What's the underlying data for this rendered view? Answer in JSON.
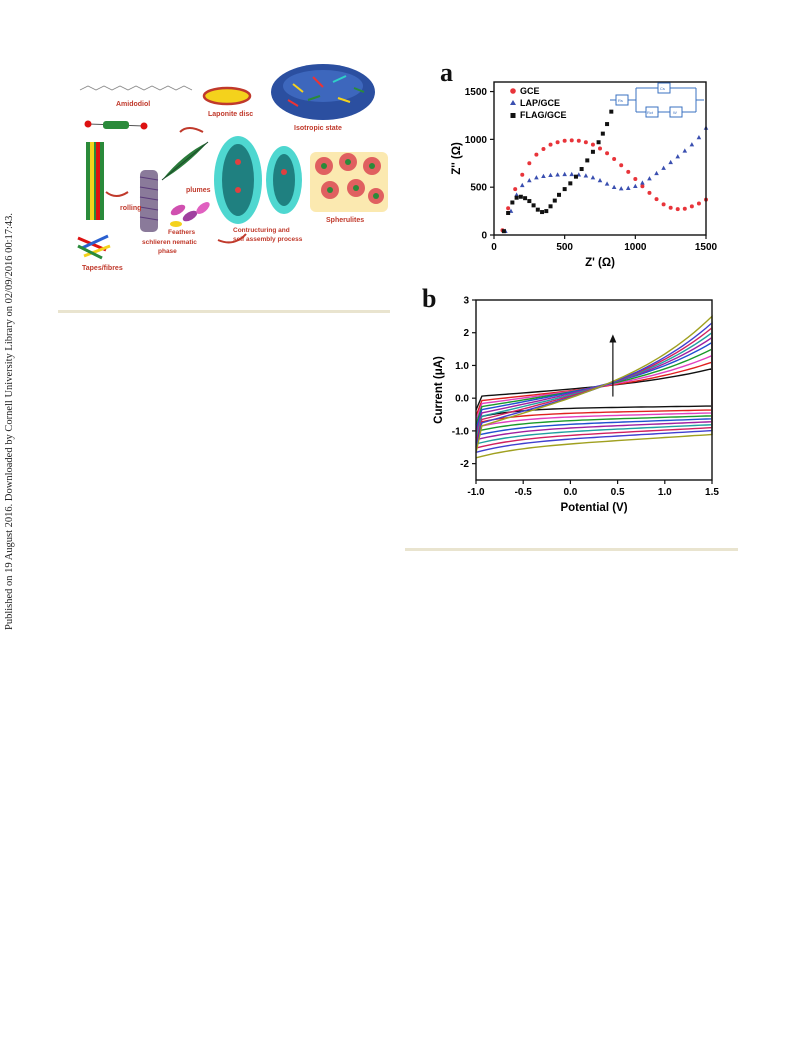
{
  "side_note": "Published on 19 August 2016. Downloaded by Cornell University Library on 02/09/2016 00:17:43.",
  "scheme": {
    "labels": {
      "amidodiol": "Amidodiol",
      "laponite": "Laponite disc",
      "isotropic": "Isotropic state",
      "plumes": "plumes",
      "rolling": "rolling",
      "feathers": "Feathers",
      "schlieren": "schlieren nematic",
      "phase": "phase",
      "constructing": "Contructuring and",
      "self_assembly": "self assembly process",
      "spherulites": "Spherulites",
      "tapes": "Tapes/fibres"
    },
    "colors": {
      "label_red": "#c0392b",
      "disc_yellow": "#f4d21c",
      "sphere_blue": "#2b4fa0",
      "cyan": "#2fd0c8"
    }
  },
  "panel_a": {
    "letter": "a",
    "legend": [
      "GCE",
      "LAP/GCE",
      "FLAG/GCE"
    ],
    "circuit_labels": {
      "rs": "Rs",
      "cs": "Cs",
      "rct": "Rct",
      "w": "W"
    }
  },
  "panel_b": {
    "letter": "b"
  },
  "chart_data": [
    {
      "type": "scatter",
      "xlabel": "Z' (Ω)",
      "ylabel": "Z'' (Ω)",
      "xlim": [
        0,
        1500
      ],
      "ylim": [
        0,
        1600
      ],
      "xticks": [
        0,
        500,
        1000,
        1500
      ],
      "yticks": [
        0,
        500,
        1000,
        1500
      ],
      "legend_position": "top-left",
      "series": [
        {
          "name": "GCE",
          "color": "#e8343a",
          "marker": "circle",
          "x": [
            60,
            100,
            150,
            200,
            250,
            300,
            350,
            400,
            450,
            500,
            550,
            600,
            650,
            700,
            750,
            800,
            850,
            900,
            950,
            1000,
            1050,
            1100,
            1150,
            1200,
            1250,
            1300,
            1350,
            1400,
            1450,
            1500
          ],
          "y": [
            50,
            280,
            480,
            630,
            750,
            840,
            900,
            945,
            970,
            985,
            990,
            985,
            970,
            945,
            905,
            855,
            795,
            730,
            660,
            585,
            510,
            440,
            375,
            320,
            285,
            270,
            275,
            300,
            330,
            370
          ]
        },
        {
          "name": "LAP/GCE",
          "color": "#3a4fb0",
          "marker": "triangle",
          "x": [
            80,
            120,
            160,
            200,
            250,
            300,
            350,
            400,
            450,
            500,
            550,
            600,
            650,
            700,
            750,
            800,
            850,
            900,
            950,
            1000,
            1050,
            1100,
            1150,
            1200,
            1250,
            1300,
            1350,
            1400,
            1450,
            1500
          ],
          "y": [
            40,
            250,
            420,
            520,
            570,
            600,
            615,
            625,
            630,
            635,
            635,
            630,
            620,
            600,
            570,
            535,
            500,
            485,
            490,
            510,
            545,
            590,
            645,
            700,
            760,
            820,
            880,
            945,
            1020,
            1120
          ]
        },
        {
          "name": "FLAG/GCE",
          "color": "#111111",
          "marker": "square",
          "x": [
            70,
            100,
            130,
            160,
            190,
            220,
            250,
            280,
            310,
            340,
            370,
            400,
            430,
            460,
            500,
            540,
            580,
            620,
            660,
            700,
            740,
            770,
            800,
            830
          ],
          "y": [
            40,
            230,
            340,
            390,
            400,
            385,
            355,
            310,
            265,
            240,
            250,
            300,
            360,
            420,
            480,
            540,
            610,
            690,
            780,
            870,
            970,
            1060,
            1160,
            1290
          ]
        }
      ]
    },
    {
      "type": "line",
      "xlabel": "Potential (V)",
      "ylabel": "Current (μA)",
      "xlim": [
        -1.0,
        1.5
      ],
      "ylim": [
        -2.5,
        3.0
      ],
      "xticks": [
        -1.0,
        -0.5,
        0.0,
        0.5,
        1.0,
        1.5
      ],
      "yticks": [
        -2,
        -1,
        0,
        1,
        2,
        3
      ],
      "annotation": "arrow pointing up (increasing scan rate)",
      "series": [
        {
          "color": "#111111",
          "anodic_min": -0.1,
          "anodic_max": 0.9,
          "cathodic": -0.4
        },
        {
          "color": "#e02020",
          "anodic_min": -0.3,
          "anodic_max": 1.1,
          "cathodic": -0.6
        },
        {
          "color": "#e040c0",
          "anodic_min": -0.45,
          "anodic_max": 1.3,
          "cathodic": -0.75
        },
        {
          "color": "#1a9a2a",
          "anodic_min": -0.6,
          "anodic_max": 1.5,
          "cathodic": -0.9
        },
        {
          "color": "#2050d0",
          "anodic_min": -0.75,
          "anodic_max": 1.7,
          "cathodic": -1.05
        },
        {
          "color": "#a020a0",
          "anodic_min": -0.9,
          "anodic_max": 1.85,
          "cathodic": -1.2
        },
        {
          "color": "#20a0a0",
          "anodic_min": -1.05,
          "anodic_max": 2.0,
          "cathodic": -1.35
        },
        {
          "color": "#d02060",
          "anodic_min": -1.2,
          "anodic_max": 2.15,
          "cathodic": -1.5
        },
        {
          "color": "#4040d0",
          "anodic_min": -1.35,
          "anodic_max": 2.3,
          "cathodic": -1.65
        },
        {
          "color": "#a0a020",
          "anodic_min": -1.5,
          "anodic_max": 2.5,
          "cathodic": -1.85
        }
      ]
    }
  ]
}
